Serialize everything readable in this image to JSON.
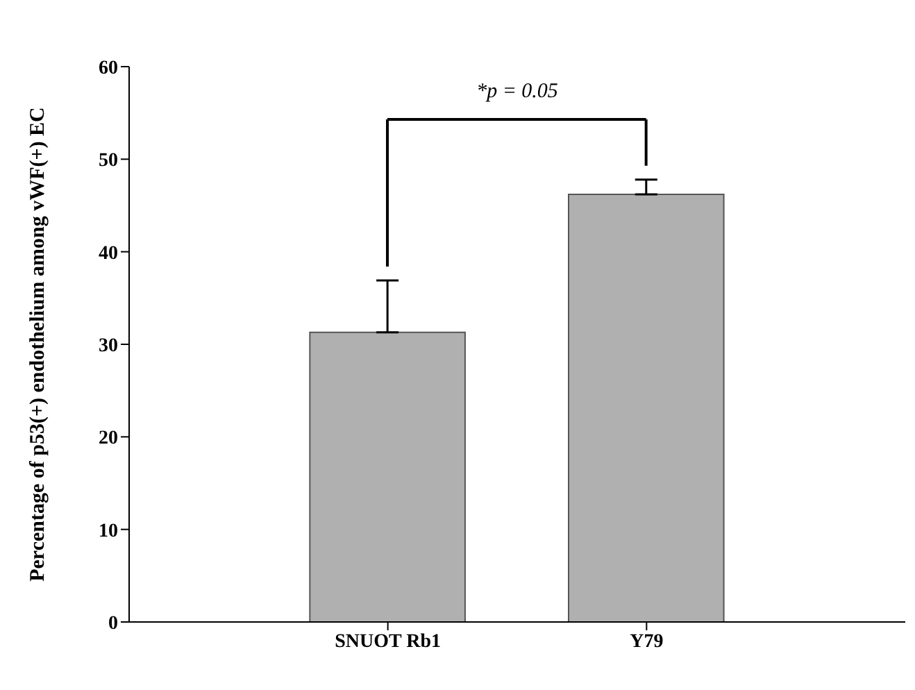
{
  "chart_data": {
    "type": "bar",
    "ylabel": "Percentage of p53(+) endothelium among vWF(+) EC",
    "categories": [
      "SNUOT Rb1",
      "Y79"
    ],
    "values": [
      31.3,
      46.2
    ],
    "errors": [
      [
        31.3,
        36.9
      ],
      [
        46.2,
        47.8
      ]
    ],
    "color": "#b0b0b0",
    "ylim": [
      0,
      60
    ],
    "yticks": [
      0,
      10,
      20,
      30,
      40,
      50,
      60
    ],
    "grid": false,
    "annotations": [
      "*p = 0.05"
    ]
  }
}
